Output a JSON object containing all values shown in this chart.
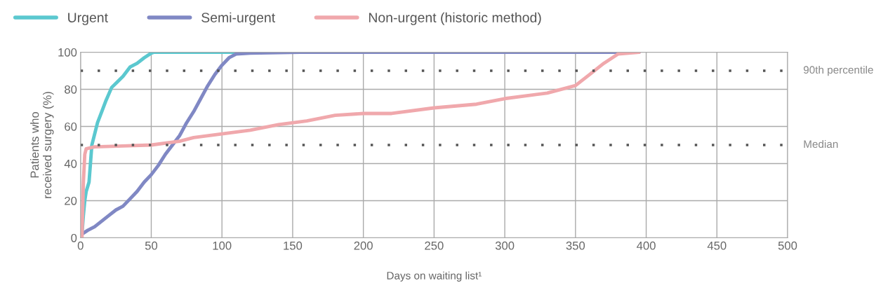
{
  "chart_data": {
    "type": "line",
    "xlabel": "Days on waiting list¹",
    "ylabel": "Patients who\nreceived surgery (%)",
    "xlim": [
      0,
      500
    ],
    "xticks": [
      0,
      50,
      100,
      150,
      200,
      250,
      300,
      350,
      400,
      450,
      500
    ],
    "ylim": [
      0,
      100
    ],
    "yticks": [
      0,
      20,
      40,
      60,
      80,
      100
    ],
    "grid": true,
    "legend": "top",
    "series": [
      {
        "name": "Urgent",
        "color": "#5bc8cf",
        "x": [
          1,
          2,
          3,
          4,
          6,
          7,
          8,
          10,
          12,
          15,
          18,
          22,
          26,
          30,
          35,
          40,
          45,
          50,
          52,
          150
        ],
        "values": [
          2,
          12,
          20,
          25,
          30,
          40,
          50,
          56,
          62,
          68,
          74,
          81,
          84,
          87,
          92,
          94,
          97,
          99.5,
          100,
          100
        ]
      },
      {
        "name": "Semi-urgent",
        "color": "#8088c4",
        "x": [
          1,
          5,
          10,
          15,
          20,
          25,
          30,
          35,
          40,
          45,
          50,
          55,
          60,
          65,
          70,
          75,
          80,
          85,
          90,
          95,
          100,
          105,
          110,
          120,
          155,
          395
        ],
        "values": [
          2,
          4,
          6,
          9,
          12,
          15,
          17,
          21,
          25,
          30,
          34,
          39,
          45,
          50,
          55,
          62,
          68,
          75,
          82,
          88,
          93,
          97,
          99,
          99.5,
          100,
          100
        ]
      },
      {
        "name": "Non-urgent (historic method)",
        "color": "#f0a8ac",
        "x": [
          1,
          2,
          3,
          4,
          10,
          30,
          50,
          70,
          80,
          100,
          120,
          140,
          160,
          180,
          200,
          220,
          250,
          280,
          300,
          330,
          350,
          360,
          370,
          380,
          395
        ],
        "values": [
          0,
          30,
          45,
          48,
          49,
          49.5,
          50,
          52,
          54,
          56,
          58,
          61,
          63,
          66,
          67,
          67,
          70,
          72,
          75,
          78,
          82,
          88,
          94,
          99,
          100
        ]
      }
    ],
    "ref_lines": [
      {
        "axis": "y",
        "value": 90,
        "label": "90th percentile",
        "color": "#555555",
        "line_style": "dotted"
      },
      {
        "axis": "y",
        "value": 50,
        "label": "Median",
        "color": "#555555",
        "line_style": "dotted"
      }
    ]
  }
}
